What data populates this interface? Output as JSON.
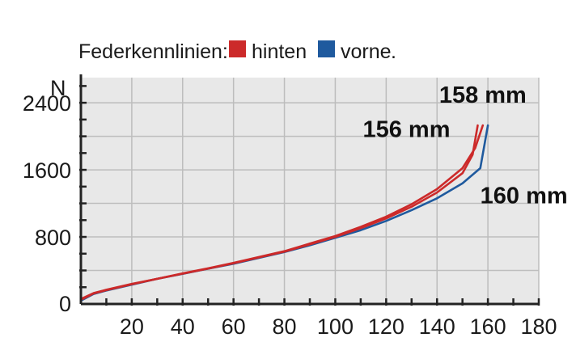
{
  "legend": {
    "title": "Federkennlinien:",
    "items": [
      {
        "label": "hinten",
        "color": "#cc2a2a"
      },
      {
        "label": "vorne",
        "color": "#1f5a9e"
      }
    ],
    "suffix": "."
  },
  "chart_data": {
    "type": "line",
    "ylabel": "N",
    "xlabel": "",
    "xlim": [
      0,
      180
    ],
    "ylim": [
      0,
      2700
    ],
    "x_ticks": [
      20,
      40,
      60,
      80,
      100,
      120,
      140,
      160,
      180
    ],
    "y_ticks": [
      0,
      800,
      1600,
      2400
    ],
    "x_tick_labels": [
      "20",
      "40",
      "60",
      "80",
      "100",
      "120",
      "140",
      "160",
      "180"
    ],
    "y_tick_labels": [
      "0",
      "800",
      "1600",
      "2400"
    ],
    "grid": true,
    "colors": {
      "hinten": "#cc2a2a",
      "vorne": "#1f5a9e",
      "axis": "#222222",
      "grid": "#bdbdbd",
      "plot_bg": "#e8e8e8"
    },
    "series": [
      {
        "name": "vorne",
        "color": "#1f5a9e",
        "points": [
          [
            0,
            40
          ],
          [
            5,
            120
          ],
          [
            10,
            160
          ],
          [
            20,
            230
          ],
          [
            30,
            300
          ],
          [
            40,
            360
          ],
          [
            50,
            420
          ],
          [
            60,
            480
          ],
          [
            70,
            550
          ],
          [
            80,
            620
          ],
          [
            90,
            700
          ],
          [
            100,
            790
          ],
          [
            110,
            880
          ],
          [
            120,
            990
          ],
          [
            130,
            1120
          ],
          [
            140,
            1260
          ],
          [
            150,
            1440
          ],
          [
            157,
            1620
          ],
          [
            160,
            2130
          ]
        ]
      },
      {
        "name": "hinten",
        "color": "#cc2a2a",
        "points": [
          [
            0,
            60
          ],
          [
            5,
            130
          ],
          [
            10,
            170
          ],
          [
            20,
            240
          ],
          [
            30,
            300
          ],
          [
            40,
            365
          ],
          [
            50,
            425
          ],
          [
            60,
            490
          ],
          [
            70,
            560
          ],
          [
            80,
            630
          ],
          [
            90,
            720
          ],
          [
            100,
            810
          ],
          [
            110,
            920
          ],
          [
            120,
            1040
          ],
          [
            130,
            1190
          ],
          [
            140,
            1370
          ],
          [
            150,
            1620
          ],
          [
            155,
            1860
          ],
          [
            158,
            2130
          ]
        ]
      },
      {
        "name": "hinten",
        "color": "#cc2a2a",
        "points": [
          [
            0,
            50
          ],
          [
            5,
            125
          ],
          [
            10,
            165
          ],
          [
            20,
            235
          ],
          [
            30,
            300
          ],
          [
            40,
            362
          ],
          [
            50,
            422
          ],
          [
            60,
            486
          ],
          [
            70,
            555
          ],
          [
            80,
            625
          ],
          [
            90,
            712
          ],
          [
            100,
            800
          ],
          [
            110,
            905
          ],
          [
            120,
            1020
          ],
          [
            130,
            1160
          ],
          [
            140,
            1330
          ],
          [
            150,
            1560
          ],
          [
            154,
            1780
          ],
          [
            156,
            2130
          ]
        ]
      }
    ],
    "annotations": [
      {
        "text": "158 mm",
        "x": 158,
        "y": 2400
      },
      {
        "text": "156 mm",
        "x": 128,
        "y": 1990
      },
      {
        "text": "160 mm",
        "x": 157,
        "y": 1200
      }
    ]
  }
}
